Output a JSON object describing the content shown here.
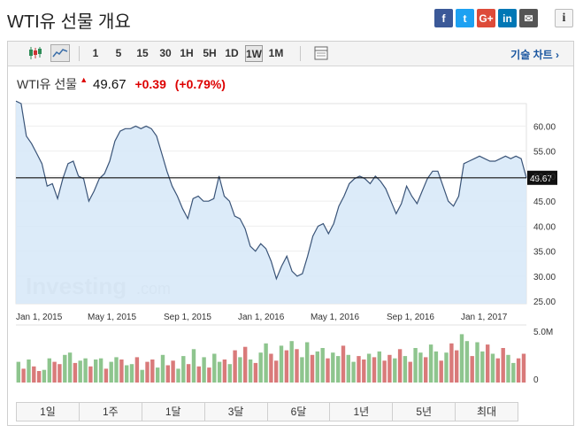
{
  "header": {
    "title": "WTI유 선물 개요"
  },
  "share": [
    {
      "icon": "facebook-icon",
      "glyph": "f",
      "color": "#3b5998"
    },
    {
      "icon": "twitter-icon",
      "glyph": "t",
      "color": "#1da1f2"
    },
    {
      "icon": "google-plus-icon",
      "glyph": "G+",
      "color": "#dd4b39"
    },
    {
      "icon": "linkedin-icon",
      "glyph": "in",
      "color": "#0077b5"
    },
    {
      "icon": "email-icon",
      "glyph": "✉",
      "color": "#555555"
    }
  ],
  "info_glyph": "i",
  "toolbar": {
    "intervals": [
      "1",
      "5",
      "15",
      "30",
      "1H",
      "5H",
      "1D",
      "1W",
      "1M"
    ],
    "active_interval": "1W",
    "tech_chart_label": "기술 차트",
    "tech_chart_arrow": "›"
  },
  "quote": {
    "name": "WTI유 선물",
    "arrow": "▲",
    "last": "49.67",
    "change": "+0.39",
    "change_pct": "(+0.79%)"
  },
  "watermark": {
    "main": "Investing",
    "suffix": ".com"
  },
  "chart_data": {
    "type": "area",
    "x_ticks": [
      "Jan 1, 2015",
      "May 1, 2015",
      "Sep 1, 2015",
      "Jan 1, 2016",
      "May 1, 2016",
      "Sep 1, 2016",
      "Jan 1, 2017"
    ],
    "y_ticks": [
      "60.00",
      "55.00",
      "50.00",
      "45.00",
      "40.00",
      "35.00",
      "30.00",
      "25.00"
    ],
    "ylim": [
      24.5,
      64.5
    ],
    "current_value": 49.67,
    "current_label": "49.67",
    "price": [
      65.0,
      64.5,
      58.0,
      56.5,
      54.5,
      52.5,
      48.0,
      48.5,
      45.5,
      49.5,
      52.5,
      53.0,
      50.0,
      49.5,
      45.0,
      47.0,
      49.5,
      50.5,
      53.0,
      57.0,
      59.0,
      59.5,
      59.5,
      60.0,
      59.5,
      60.0,
      59.5,
      58.0,
      54.5,
      51.0,
      48.0,
      46.0,
      43.5,
      41.5,
      45.5,
      46.0,
      45.0,
      45.0,
      45.5,
      50.0,
      46.0,
      45.0,
      42.0,
      41.5,
      39.5,
      36.0,
      35.0,
      36.5,
      35.5,
      33.0,
      29.5,
      32.0,
      34.0,
      31.0,
      30.0,
      30.5,
      34.0,
      38.0,
      40.0,
      40.5,
      38.5,
      40.5,
      44.0,
      46.0,
      48.5,
      49.5,
      50.0,
      49.5,
      48.5,
      50.0,
      49.0,
      47.5,
      45.0,
      42.5,
      44.5,
      48.0,
      46.0,
      44.5,
      47.0,
      49.5,
      51.0,
      51.0,
      48.0,
      45.0,
      44.0,
      46.0,
      52.5,
      53.0,
      53.5,
      54.0,
      53.5,
      53.0,
      53.0,
      53.5,
      54.0,
      53.5,
      54.0,
      53.5,
      49.67
    ],
    "volume_label": "5.0M",
    "volume_zero_label": "0",
    "volume": [
      1.8,
      1.2,
      2.0,
      1.4,
      1.0,
      1.1,
      2.1,
      1.8,
      1.6,
      2.4,
      2.6,
      1.7,
      1.9,
      2.1,
      1.4,
      2.0,
      2.1,
      1.2,
      1.8,
      2.2,
      2.0,
      1.5,
      1.6,
      2.2,
      1.1,
      1.8,
      2.0,
      1.3,
      2.4,
      1.5,
      1.9,
      1.2,
      2.3,
      1.6,
      2.9,
      1.4,
      2.2,
      1.3,
      2.5,
      1.8,
      2.0,
      1.6,
      2.8,
      2.2,
      3.1,
      2.0,
      1.7,
      2.6,
      3.4,
      2.5,
      1.9,
      3.2,
      2.8,
      3.6,
      2.9,
      2.2,
      3.5,
      2.4,
      2.7,
      3.0,
      2.1,
      2.6,
      2.3,
      3.2,
      2.4,
      1.8,
      2.3,
      2.0,
      2.5,
      2.2,
      2.7,
      1.9,
      2.4,
      2.1,
      2.9,
      2.3,
      1.8,
      3.0,
      2.6,
      2.2,
      3.3,
      2.7,
      1.9,
      2.6,
      3.4,
      2.8,
      4.2,
      3.6,
      2.3,
      3.5,
      2.7,
      3.3,
      2.5,
      2.1,
      3.0,
      2.4,
      1.7,
      2.1,
      2.5
    ],
    "volume_up": [
      1,
      0,
      1,
      0,
      0,
      1,
      1,
      0,
      0,
      1,
      1,
      0,
      1,
      1,
      0,
      1,
      1,
      0,
      1,
      1,
      0,
      1,
      1,
      0,
      1,
      0,
      0,
      1,
      1,
      0,
      0,
      1,
      1,
      0,
      1,
      0,
      1,
      0,
      1,
      1,
      0,
      1,
      0,
      1,
      0,
      1,
      0,
      1,
      1,
      0,
      0,
      1,
      0,
      1,
      0,
      1,
      1,
      0,
      1,
      1,
      0,
      1,
      1,
      0,
      1,
      1,
      0,
      0,
      1,
      0,
      1,
      0,
      0,
      1,
      0,
      1,
      0,
      1,
      1,
      0,
      1,
      1,
      0,
      1,
      0,
      0,
      1,
      1,
      0,
      1,
      1,
      0,
      1,
      0,
      0,
      1,
      1,
      0,
      0
    ],
    "up_color": "#8ec58e",
    "down_color": "#d97a7a"
  },
  "periods": [
    "1일",
    "1주",
    "1달",
    "3달",
    "6달",
    "1년",
    "5년",
    "최대"
  ]
}
